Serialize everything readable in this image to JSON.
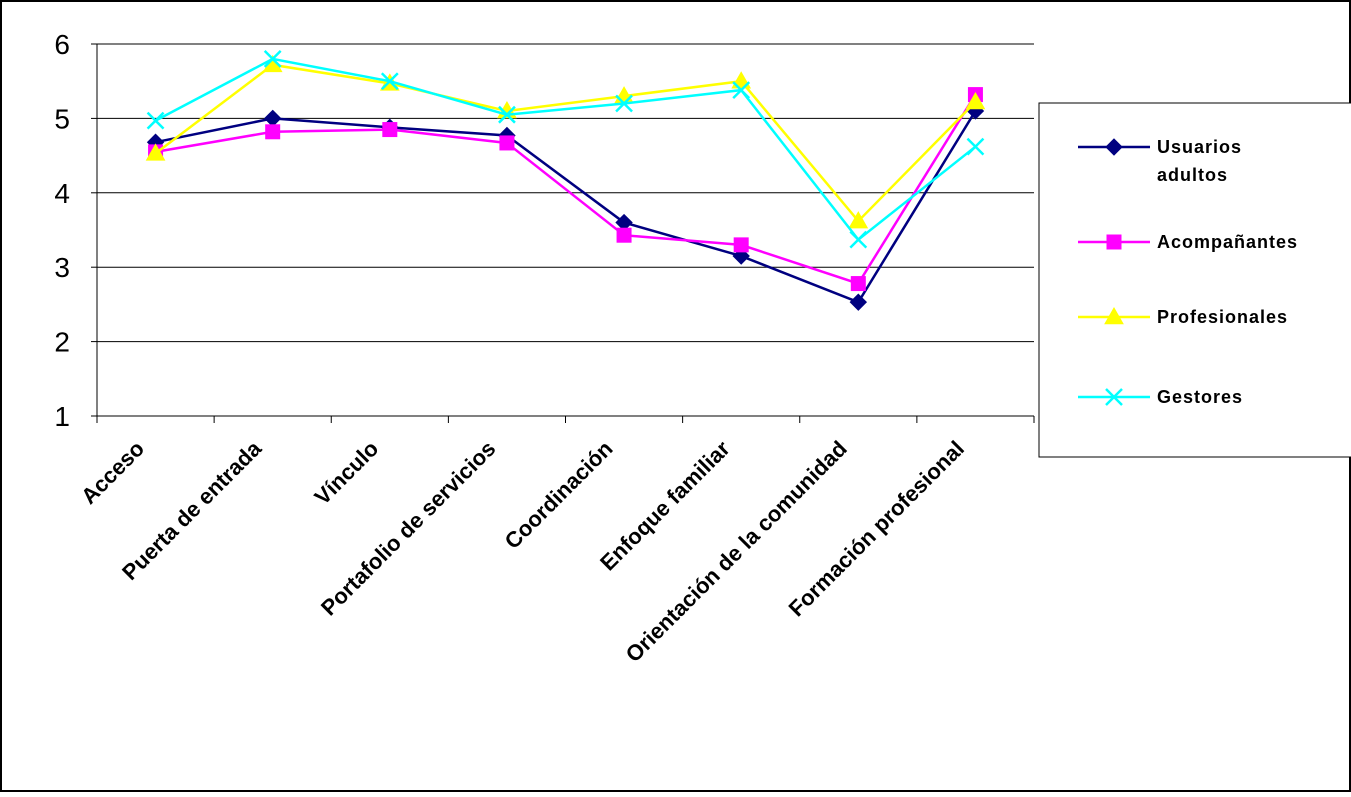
{
  "chart_data": {
    "type": "line",
    "title": "",
    "xlabel": "",
    "ylabel": "",
    "ylim": [
      1,
      6
    ],
    "yticks": [
      "1",
      "2",
      "3",
      "4",
      "5",
      "6"
    ],
    "grid": "horizontal",
    "legend_position": "right",
    "categories": [
      "Acceso",
      "Puerta de entrada",
      "Vínculo",
      "Portafolio de servicios",
      "Coordinación",
      "Enfoque familiar",
      "Orientación de la comunidad",
      "Formación profesional"
    ],
    "series": [
      {
        "name": "Usuarios adultos",
        "legend_lines": [
          "Usuarios",
          "adultos"
        ],
        "color": "#000080",
        "marker": "diamond",
        "values": [
          4.68,
          5.0,
          4.88,
          4.77,
          3.6,
          3.15,
          2.53,
          5.1
        ]
      },
      {
        "name": "Acompañantes",
        "legend_lines": [
          "Acompañantes"
        ],
        "color": "#ff00ff",
        "marker": "square",
        "values": [
          4.55,
          4.82,
          4.85,
          4.67,
          3.43,
          3.3,
          2.78,
          5.32
        ]
      },
      {
        "name": "Profesionales",
        "legend_lines": [
          "Profesionales"
        ],
        "color": "#ffff00",
        "marker": "triangle",
        "values": [
          4.53,
          5.72,
          5.47,
          5.1,
          5.3,
          5.5,
          3.62,
          5.22
        ]
      },
      {
        "name": "Gestores",
        "legend_lines": [
          "Gestores"
        ],
        "color": "#00ffff",
        "marker": "x",
        "values": [
          4.97,
          5.8,
          5.5,
          5.05,
          5.2,
          5.38,
          3.37,
          4.62
        ]
      }
    ]
  }
}
